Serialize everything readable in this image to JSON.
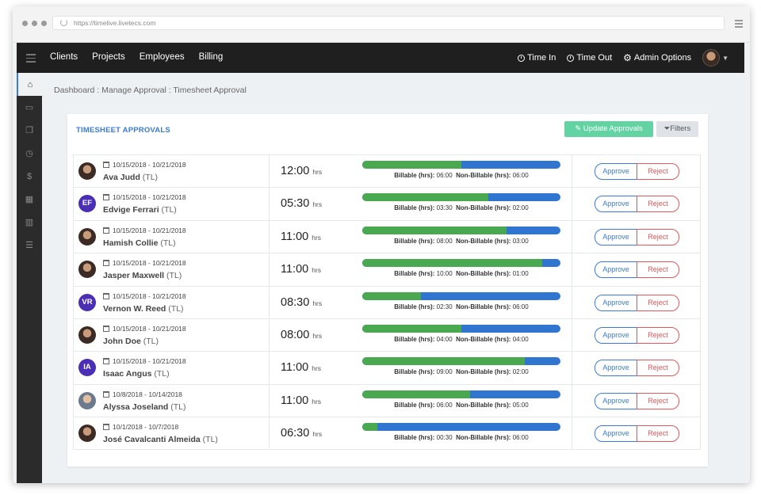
{
  "browser": {
    "url": "https://timelive.livetecs.com"
  },
  "topnav": {
    "links": [
      "Clients",
      "Projects",
      "Employees",
      "Billing"
    ],
    "time_in": "Time In",
    "time_out": "Time Out",
    "admin_options": "Admin Options"
  },
  "sidebar": {
    "icons": [
      "home-icon",
      "folder-icon",
      "copy-icon",
      "clock-icon",
      "dollar-icon",
      "calendar-icon",
      "bar-chart-icon",
      "list-icon"
    ]
  },
  "breadcrumb": "Dashboard : Manage Approval : Timesheet Approval",
  "panel": {
    "title": "TIMESHEET APPROVALS",
    "update_button": "Update Approvals",
    "filters_button": "Filters"
  },
  "labels": {
    "unit": "hrs",
    "billable": "Billable (hrs):",
    "non_billable": "Non-Billable (hrs):",
    "approve": "Approve",
    "reject": "Reject",
    "tl": "(TL)"
  },
  "colors": {
    "billable": "#4aa851",
    "non_billable": "#3075cf",
    "accent": "#3a7bd5",
    "reject": "#e0585a",
    "update": "#64d3a4"
  },
  "rows": [
    {
      "avatar": "photo",
      "initials": "",
      "date": "10/15/2018 - 10/21/2018",
      "name": "Ava Judd",
      "hours": "12:00",
      "billable": "06:00",
      "non_billable": "06:00",
      "billable_fraction": 0.5
    },
    {
      "avatar": "initials",
      "initials": "EF",
      "date": "10/15/2018 - 10/21/2018",
      "name": "Edvige Ferrari",
      "hours": "05:30",
      "billable": "03:30",
      "non_billable": "02:00",
      "billable_fraction": 0.636
    },
    {
      "avatar": "photo",
      "initials": "",
      "date": "10/15/2018 - 10/21/2018",
      "name": "Hamish Collie",
      "hours": "11:00",
      "billable": "08:00",
      "non_billable": "03:00",
      "billable_fraction": 0.727
    },
    {
      "avatar": "photo",
      "initials": "",
      "date": "10/15/2018 - 10/21/2018",
      "name": "Jasper Maxwell",
      "hours": "11:00",
      "billable": "10:00",
      "non_billable": "01:00",
      "billable_fraction": 0.909
    },
    {
      "avatar": "initials",
      "initials": "VR",
      "date": "10/15/2018 - 10/21/2018",
      "name": "Vernon W. Reed",
      "hours": "08:30",
      "billable": "02:30",
      "non_billable": "06:00",
      "billable_fraction": 0.294
    },
    {
      "avatar": "photo",
      "initials": "",
      "date": "10/15/2018 - 10/21/2018",
      "name": "John Doe",
      "hours": "08:00",
      "billable": "04:00",
      "non_billable": "04:00",
      "billable_fraction": 0.5
    },
    {
      "avatar": "initials",
      "initials": "IA",
      "date": "10/15/2018 - 10/21/2018",
      "name": "Isaac Angus",
      "hours": "11:00",
      "billable": "09:00",
      "non_billable": "02:00",
      "billable_fraction": 0.818
    },
    {
      "avatar": "photo-light",
      "initials": "",
      "date": "10/8/2018 - 10/14/2018",
      "name": "Alyssa Joseland",
      "hours": "11:00",
      "billable": "06:00",
      "non_billable": "05:00",
      "billable_fraction": 0.545
    },
    {
      "avatar": "photo",
      "initials": "",
      "date": "10/1/2018 - 10/7/2018",
      "name": "José Cavalcanti Almeida",
      "hours": "06:30",
      "billable": "00:30",
      "non_billable": "06:00",
      "billable_fraction": 0.077
    }
  ]
}
